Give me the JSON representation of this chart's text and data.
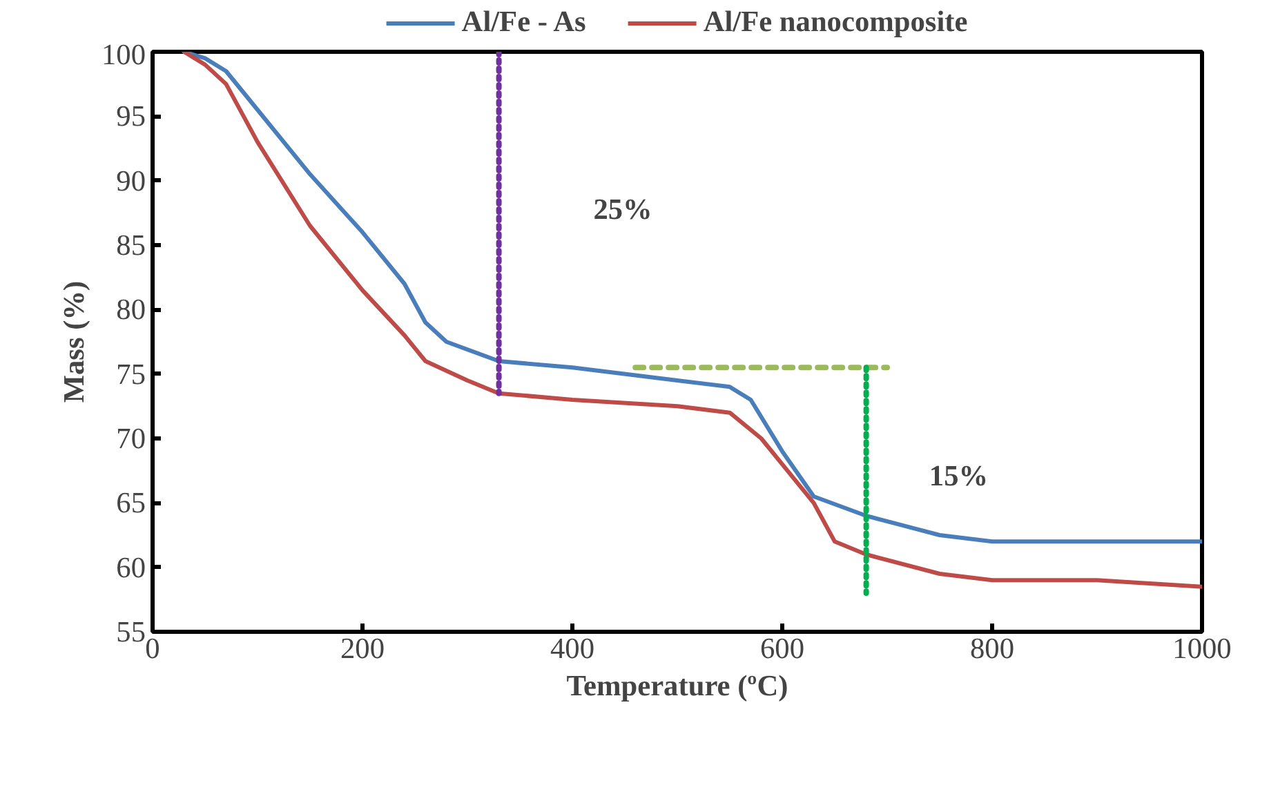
{
  "chart_data": {
    "type": "line",
    "xlabel": "Temperature (ºC)",
    "ylabel": "Mass (%)",
    "xlim": [
      0,
      1000
    ],
    "ylim": [
      55,
      100
    ],
    "xticks": [
      0,
      200,
      400,
      600,
      800,
      1000
    ],
    "yticks": [
      55,
      60,
      65,
      70,
      75,
      80,
      85,
      90,
      95,
      100
    ],
    "grid": false,
    "legend": "top",
    "series": [
      {
        "name": "Al/Fe - As",
        "color": "#4a7ebb",
        "x": [
          30,
          50,
          70,
          100,
          150,
          200,
          240,
          260,
          280,
          330,
          400,
          500,
          550,
          570,
          600,
          630,
          680,
          750,
          800,
          900,
          1000
        ],
        "values": [
          100,
          99.5,
          98.5,
          95.5,
          90.5,
          86,
          82,
          79,
          77.5,
          76,
          75.5,
          74.5,
          74,
          73,
          69,
          65.5,
          64,
          62.5,
          62,
          62,
          62
        ]
      },
      {
        "name": "Al/Fe nanocomposite",
        "color": "#be4b48",
        "x": [
          30,
          50,
          70,
          100,
          150,
          200,
          240,
          260,
          300,
          330,
          400,
          500,
          550,
          580,
          600,
          630,
          650,
          680,
          750,
          800,
          900,
          1000
        ],
        "values": [
          100,
          99,
          97.5,
          93,
          86.5,
          81.5,
          78,
          76,
          74.5,
          73.5,
          73,
          72.5,
          72,
          70,
          68,
          65,
          62,
          61,
          59.5,
          59,
          59,
          58.5
        ]
      },
      {
        "color": "#7030a0",
        "line_style": "dotted",
        "x": [
          330,
          330
        ],
        "values": [
          100,
          73.5
        ]
      },
      {
        "color": "#9bbb59",
        "line_style": "dashed",
        "x": [
          460,
          700
        ],
        "values": [
          75.5,
          75.5
        ]
      },
      {
        "color": "#00b050",
        "line_style": "dotted",
        "x": [
          680,
          680
        ],
        "values": [
          75.5,
          58
        ]
      }
    ],
    "annotations": [
      "25%",
      "15%"
    ]
  }
}
